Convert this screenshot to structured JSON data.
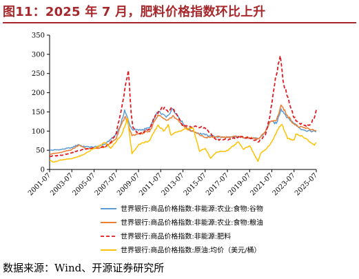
{
  "header": {
    "title": "图11：2025 年 7 月，肥料价格指数环比上升"
  },
  "footer": {
    "source": "数据来源：Wind、开源证券研究所"
  },
  "chart_data": {
    "type": "line",
    "title": "",
    "xlabel": "",
    "ylabel": "",
    "ylim": [
      0,
      350
    ],
    "yticks": [
      0,
      50,
      100,
      150,
      200,
      250,
      300,
      350
    ],
    "xlim": [
      "2001-07",
      "2025-07"
    ],
    "xticks": [
      "2001-07",
      "2003-07",
      "2005-07",
      "2007-07",
      "2009-07",
      "2011-07",
      "2013-07",
      "2015-07",
      "2017-07",
      "2019-07",
      "2021-07",
      "2023-07",
      "2025-07"
    ],
    "grid": false,
    "legend_position": "bottom",
    "series": [
      {
        "name": "世界银行:商品价格指数:非能源:农业:食物:谷物",
        "color": "#5b9bd5",
        "style": "solid",
        "points": [
          [
            "2001-07",
            50
          ],
          [
            "2002-07",
            52
          ],
          [
            "2003-07",
            57
          ],
          [
            "2004-02",
            65
          ],
          [
            "2004-07",
            60
          ],
          [
            "2005-07",
            58
          ],
          [
            "2006-07",
            66
          ],
          [
            "2007-01",
            78
          ],
          [
            "2007-07",
            92
          ],
          [
            "2007-12",
            118
          ],
          [
            "2008-04",
            155
          ],
          [
            "2008-09",
            120
          ],
          [
            "2008-12",
            105
          ],
          [
            "2009-07",
            102
          ],
          [
            "2010-07",
            108
          ],
          [
            "2010-12",
            132
          ],
          [
            "2011-04",
            150
          ],
          [
            "2011-09",
            145
          ],
          [
            "2012-01",
            136
          ],
          [
            "2012-08",
            158
          ],
          [
            "2013-01",
            142
          ],
          [
            "2013-07",
            120
          ],
          [
            "2014-01",
            105
          ],
          [
            "2014-07",
            98
          ],
          [
            "2015-07",
            90
          ],
          [
            "2016-07",
            85
          ],
          [
            "2017-07",
            83
          ],
          [
            "2018-07",
            85
          ],
          [
            "2019-07",
            82
          ],
          [
            "2020-05",
            80
          ],
          [
            "2020-12",
            98
          ],
          [
            "2021-05",
            125
          ],
          [
            "2021-12",
            120
          ],
          [
            "2022-05",
            158
          ],
          [
            "2022-12",
            135
          ],
          [
            "2023-07",
            120
          ],
          [
            "2024-01",
            108
          ],
          [
            "2024-07",
            102
          ],
          [
            "2025-01",
            100
          ],
          [
            "2025-07",
            98
          ]
        ]
      },
      {
        "name": "世界银行:商品价格指数:非能源:农业:食物:粮油",
        "color": "#ed7d31",
        "style": "solid",
        "points": [
          [
            "2001-07",
            40
          ],
          [
            "2002-07",
            44
          ],
          [
            "2003-07",
            52
          ],
          [
            "2004-03",
            64
          ],
          [
            "2004-09",
            55
          ],
          [
            "2005-07",
            54
          ],
          [
            "2006-07",
            58
          ],
          [
            "2007-01",
            68
          ],
          [
            "2007-07",
            80
          ],
          [
            "2007-12",
            115
          ],
          [
            "2008-05",
            138
          ],
          [
            "2008-10",
            100
          ],
          [
            "2008-12",
            88
          ],
          [
            "2009-07",
            93
          ],
          [
            "2010-07",
            98
          ],
          [
            "2010-12",
            125
          ],
          [
            "2011-04",
            142
          ],
          [
            "2011-09",
            135
          ],
          [
            "2012-01",
            128
          ],
          [
            "2012-08",
            140
          ],
          [
            "2013-01",
            130
          ],
          [
            "2013-07",
            115
          ],
          [
            "2014-01",
            103
          ],
          [
            "2014-07",
            98
          ],
          [
            "2015-07",
            83
          ],
          [
            "2016-07",
            85
          ],
          [
            "2017-07",
            84
          ],
          [
            "2018-07",
            86
          ],
          [
            "2019-07",
            82
          ],
          [
            "2020-05",
            80
          ],
          [
            "2020-12",
            98
          ],
          [
            "2021-05",
            124
          ],
          [
            "2021-12",
            128
          ],
          [
            "2022-05",
            168
          ],
          [
            "2022-12",
            140
          ],
          [
            "2023-07",
            118
          ],
          [
            "2024-01",
            110
          ],
          [
            "2024-07",
            108
          ],
          [
            "2025-01",
            104
          ],
          [
            "2025-07",
            102
          ]
        ]
      },
      {
        "name": "世界银行:商品价格指数:非能源:肥料",
        "color": "#e0181f",
        "style": "dashed",
        "points": [
          [
            "2001-07",
            34
          ],
          [
            "2002-07",
            37
          ],
          [
            "2003-07",
            44
          ],
          [
            "2004-07",
            52
          ],
          [
            "2005-07",
            57
          ],
          [
            "2006-07",
            60
          ],
          [
            "2007-01",
            70
          ],
          [
            "2007-07",
            95
          ],
          [
            "2007-12",
            150
          ],
          [
            "2008-04",
            205
          ],
          [
            "2008-08",
            258
          ],
          [
            "2008-11",
            150
          ],
          [
            "2009-01",
            110
          ],
          [
            "2009-07",
            92
          ],
          [
            "2010-07",
            105
          ],
          [
            "2011-01",
            140
          ],
          [
            "2011-09",
            163
          ],
          [
            "2012-03",
            150
          ],
          [
            "2012-08",
            160
          ],
          [
            "2013-01",
            140
          ],
          [
            "2013-07",
            112
          ],
          [
            "2014-07",
            112
          ],
          [
            "2015-07",
            108
          ],
          [
            "2016-07",
            78
          ],
          [
            "2017-07",
            78
          ],
          [
            "2018-07",
            85
          ],
          [
            "2019-07",
            82
          ],
          [
            "2020-05",
            72
          ],
          [
            "2020-12",
            90
          ],
          [
            "2021-05",
            140
          ],
          [
            "2021-11",
            240
          ],
          [
            "2022-04",
            296
          ],
          [
            "2022-08",
            220
          ],
          [
            "2022-12",
            190
          ],
          [
            "2023-07",
            135
          ],
          [
            "2024-01",
            120
          ],
          [
            "2024-07",
            115
          ],
          [
            "2025-01",
            118
          ],
          [
            "2025-05",
            135
          ],
          [
            "2025-07",
            155
          ]
        ]
      },
      {
        "name": "世界银行:商品价格指数:原油:均价（美元/桶）",
        "color": "#ffc000",
        "style": "solid",
        "points": [
          [
            "2001-07",
            24
          ],
          [
            "2001-12",
            19
          ],
          [
            "2002-07",
            25
          ],
          [
            "2003-07",
            28
          ],
          [
            "2004-07",
            38
          ],
          [
            "2005-07",
            55
          ],
          [
            "2006-07",
            70
          ],
          [
            "2007-01",
            55
          ],
          [
            "2007-07",
            73
          ],
          [
            "2008-01",
            92
          ],
          [
            "2008-07",
            133
          ],
          [
            "2008-12",
            41
          ],
          [
            "2009-07",
            65
          ],
          [
            "2010-07",
            75
          ],
          [
            "2011-04",
            116
          ],
          [
            "2011-10",
            100
          ],
          [
            "2012-03",
            117
          ],
          [
            "2012-06",
            90
          ],
          [
            "2013-07",
            104
          ],
          [
            "2014-06",
            108
          ],
          [
            "2015-01",
            47
          ],
          [
            "2015-07",
            55
          ],
          [
            "2016-01",
            29
          ],
          [
            "2016-07",
            45
          ],
          [
            "2017-07",
            49
          ],
          [
            "2018-07",
            72
          ],
          [
            "2018-12",
            53
          ],
          [
            "2019-07",
            62
          ],
          [
            "2020-04",
            21
          ],
          [
            "2020-07",
            42
          ],
          [
            "2021-01",
            53
          ],
          [
            "2021-07",
            72
          ],
          [
            "2022-03",
            112
          ],
          [
            "2022-06",
            117
          ],
          [
            "2022-12",
            80
          ],
          [
            "2023-07",
            77
          ],
          [
            "2023-09",
            92
          ],
          [
            "2024-04",
            87
          ],
          [
            "2024-12",
            72
          ],
          [
            "2025-05",
            63
          ],
          [
            "2025-07",
            70
          ]
        ]
      }
    ]
  }
}
